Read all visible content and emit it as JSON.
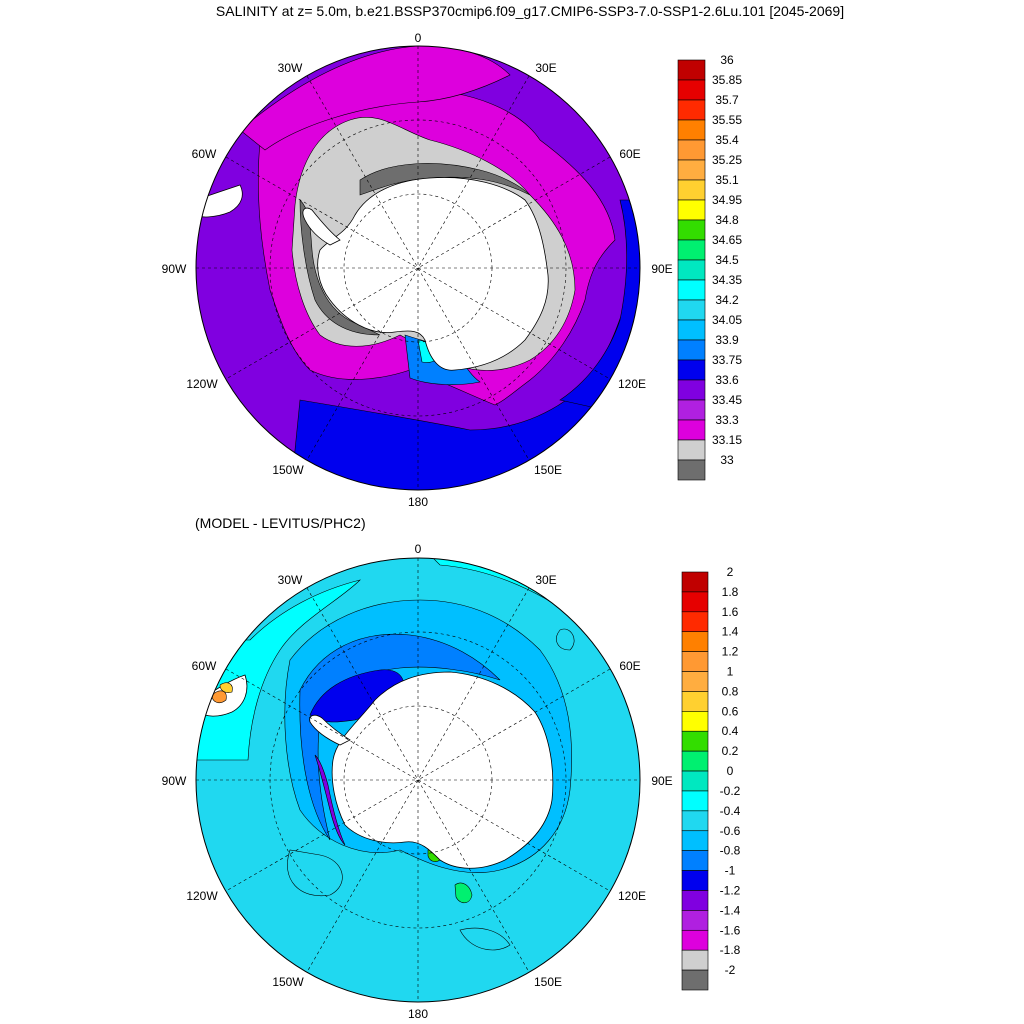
{
  "titles": {
    "top": "SALINITY at z=   5.0m, b.e21.BSSP370cmip6.f09_g17.CMIP6-SSP3-7.0-SSP1-2.6Lu.101 [2045-2069]",
    "bottom": "(MODEL - LEVITUS/PHC2)"
  },
  "lon_labels": [
    "0",
    "30E",
    "60E",
    "90E",
    "120E",
    "150E",
    "180",
    "150W",
    "120W",
    "90W",
    "60W",
    "30W"
  ],
  "colorbar_top": {
    "labels": [
      "36",
      "35.85",
      "35.7",
      "35.55",
      "35.4",
      "35.25",
      "35.1",
      "34.95",
      "34.8",
      "34.65",
      "34.5",
      "34.35",
      "34.2",
      "34.05",
      "33.9",
      "33.75",
      "33.6",
      "33.45",
      "33.3",
      "33.15",
      "33"
    ],
    "colors": [
      "#c00000",
      "#e60000",
      "#ff2a00",
      "#ff8000",
      "#ff9933",
      "#ffad40",
      "#ffd030",
      "#ffff00",
      "#33dd00",
      "#00f070",
      "#00e8c0",
      "#00ffff",
      "#20d8f0",
      "#00bfff",
      "#0080ff",
      "#0000ee",
      "#8000e0",
      "#b020e0",
      "#dd00dd",
      "#cfcfcf",
      "#6e6e6e"
    ]
  },
  "colorbar_bottom": {
    "labels": [
      "2",
      "1.8",
      "1.6",
      "1.4",
      "1.2",
      "1",
      "0.8",
      "0.6",
      "0.4",
      "0.2",
      "0",
      "-0.2",
      "-0.4",
      "-0.6",
      "-0.8",
      "-1",
      "-1.2",
      "-1.4",
      "-1.6",
      "-1.8",
      "-2"
    ],
    "colors": [
      "#c00000",
      "#e60000",
      "#ff2a00",
      "#ff8000",
      "#ff9933",
      "#ffad40",
      "#ffd030",
      "#ffff00",
      "#33dd00",
      "#00f070",
      "#00e8c0",
      "#00ffff",
      "#20d8f0",
      "#00bfff",
      "#0080ff",
      "#0000ee",
      "#8000e0",
      "#b020e0",
      "#dd00dd",
      "#cfcfcf",
      "#6e6e6e"
    ]
  }
}
